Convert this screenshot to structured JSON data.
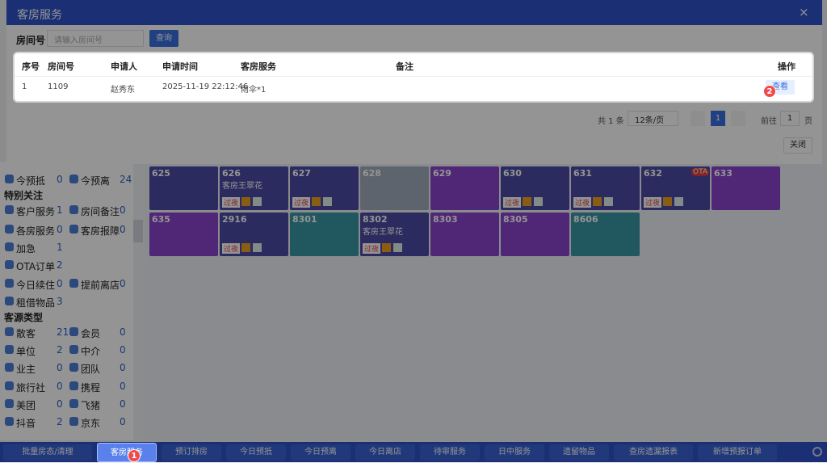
{
  "modal": {
    "title": "客房服务",
    "close_icon": "×",
    "search_label": "房间号",
    "search_placeholder": "请输入房间号",
    "query_button": "查询",
    "table": {
      "headers": [
        "序号",
        "房间号",
        "申请人",
        "申请时间",
        "客房服务",
        "备注",
        "操作"
      ],
      "rows": [
        {
          "index": "1",
          "room": "1109",
          "applicant": "赵秀东",
          "time": "2025-11-19 22:12:46",
          "service": "雨伞*1",
          "action": "查看"
        }
      ]
    },
    "pagination": {
      "total": "共 1 条",
      "page_size": "12条/页",
      "current": "1",
      "goto": "前往",
      "goto_value": "1",
      "page_unit": "页"
    },
    "close_button": "关闭"
  },
  "sidebar": [
    {
      "items": [
        {
          "label": "今预抵",
          "count": 0
        },
        {
          "label": "今预离",
          "count": 24
        }
      ]
    },
    {
      "heading": "特别关注"
    },
    {
      "items": [
        {
          "label": "客户服务",
          "count": 1
        },
        {
          "label": "房间备注",
          "count": 0
        }
      ]
    },
    {
      "items": [
        {
          "label": "各房服务",
          "count": 0
        },
        {
          "label": "客房报障",
          "count": 0
        }
      ]
    },
    {
      "items": [
        {
          "label": "加急",
          "count": 1
        }
      ]
    },
    {
      "items": [
        {
          "label": "OTA订单",
          "count": 2
        }
      ]
    },
    {
      "items": [
        {
          "label": "今日续住",
          "count": 0
        },
        {
          "label": "提前离店",
          "count": 0
        }
      ]
    },
    {
      "items": [
        {
          "label": "租借物品",
          "count": 3
        }
      ]
    },
    {
      "heading": "客源类型"
    },
    {
      "items": [
        {
          "label": "散客",
          "count": 21
        },
        {
          "label": "会员",
          "count": 0
        }
      ]
    },
    {
      "items": [
        {
          "label": "单位",
          "count": 2
        },
        {
          "label": "中介",
          "count": 0
        }
      ]
    },
    {
      "items": [
        {
          "label": "业主",
          "count": 0
        },
        {
          "label": "团队",
          "count": 0
        }
      ]
    },
    {
      "items": [
        {
          "label": "旅行社",
          "count": 0
        },
        {
          "label": "携程",
          "count": 0
        }
      ]
    },
    {
      "items": [
        {
          "label": "美团",
          "count": 0
        },
        {
          "label": "飞猪",
          "count": 0
        }
      ]
    },
    {
      "items": [
        {
          "label": "抖音",
          "count": 2
        },
        {
          "label": "京东",
          "count": 0
        }
      ]
    }
  ],
  "rooms": [
    [
      {
        "number": "625",
        "color": "#4b4ba6"
      },
      {
        "number": "626",
        "guest": "客房王翠花",
        "tag": "过夜",
        "color": "#4b4ba6"
      },
      {
        "number": "627",
        "tag": "过夜",
        "color": "#4b4ba6"
      },
      {
        "number": "628",
        "color": "#a3adbd"
      },
      {
        "number": "629",
        "color": "#8a44cc"
      },
      {
        "number": "630",
        "tag": "过夜",
        "color": "#4b4ba6"
      },
      {
        "number": "631",
        "tag": "过夜",
        "color": "#4b4ba6"
      },
      {
        "number": "632",
        "badge": "OTA",
        "tag": "过夜",
        "color": "#4b4ba6"
      },
      {
        "number": "633",
        "color": "#8a44cc"
      }
    ],
    [
      {
        "number": "635",
        "color": "#8a44cc"
      },
      {
        "number": "2916",
        "tag": "过夜",
        "color": "#4b4ba6"
      },
      {
        "number": "8301",
        "color": "#3a98a4"
      },
      {
        "number": "8302",
        "guest": "客房王翠花",
        "tag": "过夜",
        "color": "#4b4ba6"
      },
      {
        "number": "8303",
        "color": "#8a44cc"
      },
      {
        "number": "8305",
        "color": "#8a44cc"
      },
      {
        "number": "8606",
        "color": "#3a98a4"
      }
    ]
  ],
  "toolbar": [
    "批量房态/清理",
    "客房服务",
    "预订排房",
    "今日预抵",
    "今日预离",
    "今日离店",
    "待审服务",
    "日中服务",
    "遗留物品",
    "查房遗漏报表",
    "新增预报订单"
  ],
  "steps": [
    "1",
    "2"
  ]
}
